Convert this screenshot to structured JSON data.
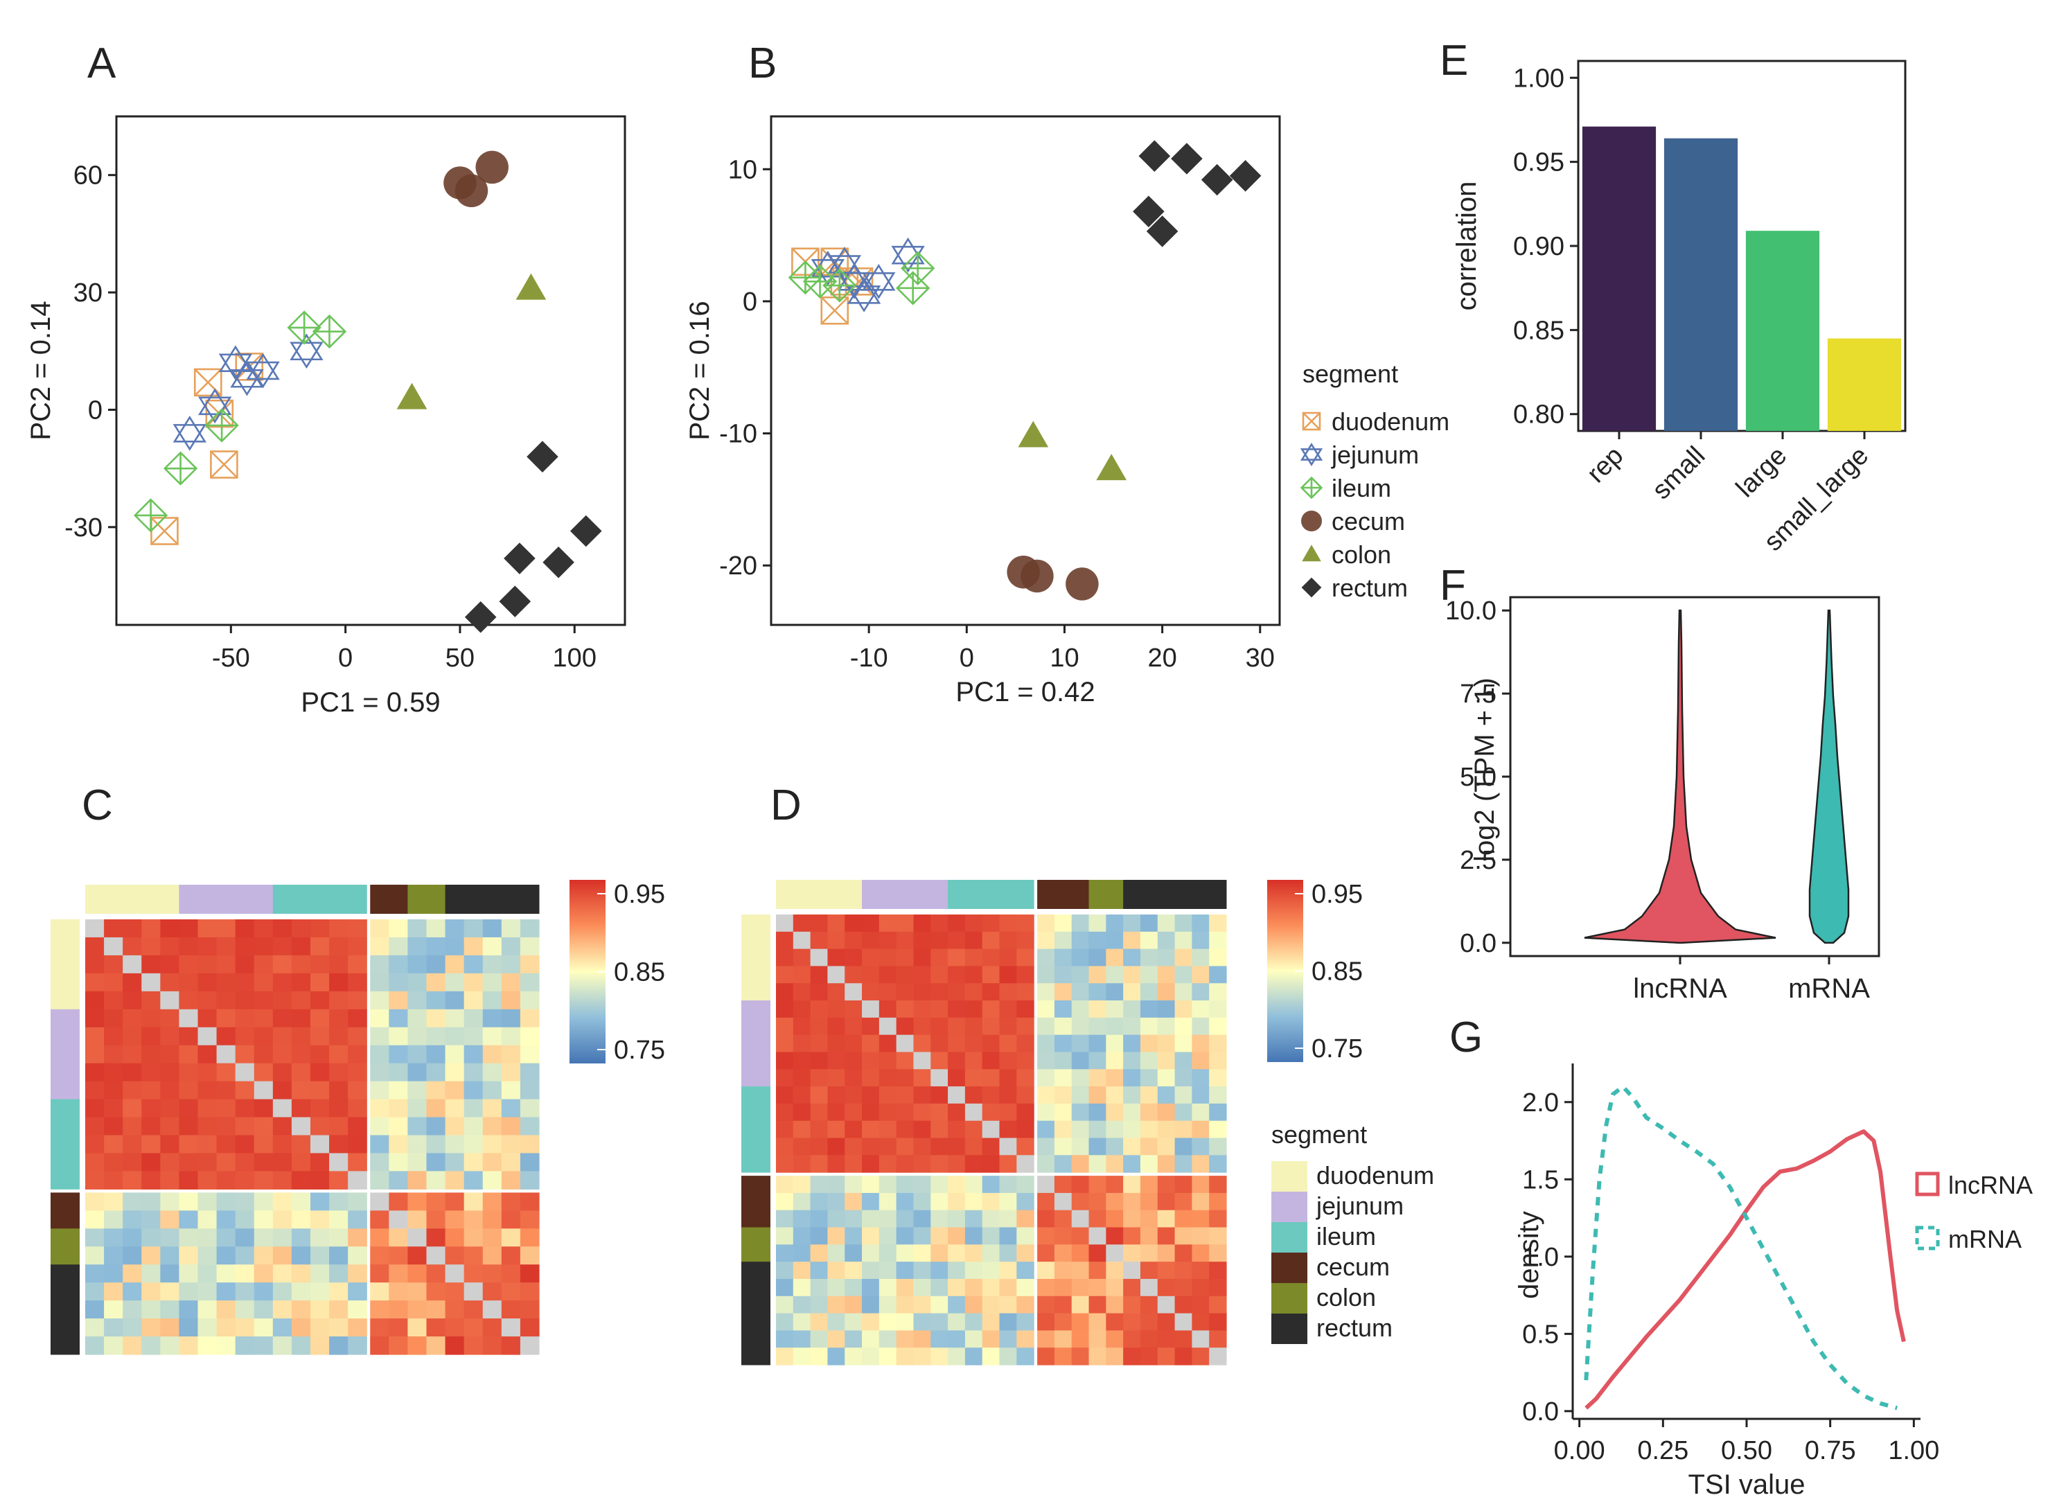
{
  "colors": {
    "duodenum_marker": "#e6a15a",
    "jejunum_marker": "#5a78b5",
    "ileum_marker": "#6cc35a",
    "cecum_marker": "#6b3e2c",
    "colon_marker": "#8a9a3a",
    "rectum_marker": "#333333",
    "duodenum_bar": "#f5f3b8",
    "jejunum_bar": "#c4b5e0",
    "ileum_bar": "#6cc9bf",
    "cecum_bar": "#5a2c1c",
    "colon_bar": "#7d8a2a",
    "rectum_bar": "#2c2c2c",
    "lncRNA": "#e05561",
    "mRNA": "#3dbab2",
    "rep": "#3d2450",
    "small": "#3d6391",
    "large": "#42bf70",
    "small_large": "#e8dc2d"
  },
  "panels": {
    "A": "A",
    "B": "B",
    "C": "C",
    "D": "D",
    "E": "E",
    "F": "F",
    "G": "G"
  },
  "chart_data": [
    {
      "id": "A",
      "type": "scatter",
      "xlabel": "PC1 = 0.59",
      "ylabel": "PC2 = 0.14",
      "xlim": [
        -100,
        122
      ],
      "ylim": [
        -55,
        75
      ],
      "xticks": [
        -50,
        0,
        50,
        100
      ],
      "yticks": [
        60,
        30,
        0,
        -30
      ],
      "series": [
        {
          "name": "duodenum",
          "points": [
            [
              -60,
              7
            ],
            [
              -55,
              -1
            ],
            [
              -53,
              -14
            ],
            [
              -42,
              11
            ],
            [
              -79,
              -31
            ]
          ]
        },
        {
          "name": "jejunum",
          "points": [
            [
              -48,
              12
            ],
            [
              -57,
              1
            ],
            [
              -68,
              -6
            ],
            [
              -36,
              10
            ],
            [
              -17,
              15
            ],
            [
              -43,
              8
            ]
          ]
        },
        {
          "name": "ileum",
          "points": [
            [
              -18,
              21
            ],
            [
              -7,
              20
            ],
            [
              -54,
              -4
            ],
            [
              -72,
              -15
            ],
            [
              -85,
              -27
            ]
          ]
        },
        {
          "name": "cecum",
          "points": [
            [
              50,
              58
            ],
            [
              55,
              56
            ],
            [
              64,
              62
            ]
          ]
        },
        {
          "name": "colon",
          "points": [
            [
              81,
              31
            ],
            [
              29,
              3
            ]
          ]
        },
        {
          "name": "rectum",
          "points": [
            [
              86,
              -12
            ],
            [
              76,
              -38
            ],
            [
              93,
              -39
            ],
            [
              105,
              -31
            ],
            [
              74,
              -49
            ],
            [
              59,
              -53
            ]
          ]
        }
      ]
    },
    {
      "id": "B",
      "type": "scatter",
      "xlabel": "PC1 = 0.42",
      "ylabel": "PC2 = 0.16",
      "xlim": [
        -20,
        32
      ],
      "ylim": [
        -24.5,
        14
      ],
      "xticks": [
        -10,
        0,
        10,
        20,
        30
      ],
      "yticks": [
        10,
        0,
        -10,
        -20
      ],
      "series": [
        {
          "name": "duodenum",
          "points": [
            [
              -16.5,
              3
            ],
            [
              -13.5,
              3
            ],
            [
              -12.5,
              1.5
            ],
            [
              -11,
              1.5
            ],
            [
              -13.5,
              -0.7
            ]
          ]
        },
        {
          "name": "jejunum",
          "points": [
            [
              -6,
              3.5
            ],
            [
              -9,
              1.5
            ],
            [
              -11.5,
              1.5
            ],
            [
              -14.2,
              2.5
            ],
            [
              -10.5,
              0.5
            ],
            [
              -12.5,
              2.8
            ]
          ]
        },
        {
          "name": "ileum",
          "points": [
            [
              -5,
              2.5
            ],
            [
              -5.5,
              1
            ],
            [
              -15,
              1.5
            ],
            [
              -16.5,
              1.8
            ],
            [
              -13,
              1.2
            ]
          ]
        },
        {
          "name": "cecum",
          "points": [
            [
              5.8,
              -20.5
            ],
            [
              7.2,
              -20.8
            ],
            [
              11.8,
              -21.4
            ]
          ]
        },
        {
          "name": "colon",
          "points": [
            [
              6.8,
              -10.2
            ],
            [
              14.8,
              -12.7
            ]
          ]
        },
        {
          "name": "rectum",
          "points": [
            [
              19.2,
              11
            ],
            [
              22.5,
              10.8
            ],
            [
              25.6,
              9.2
            ],
            [
              28.5,
              9.5
            ],
            [
              18.6,
              6.8
            ],
            [
              20,
              5.3
            ]
          ]
        }
      ]
    },
    {
      "id": "E",
      "type": "bar",
      "ylabel": "correlation",
      "categories": [
        "rep",
        "small",
        "large",
        "small_large"
      ],
      "values": [
        0.971,
        0.964,
        0.909,
        0.845
      ],
      "ylim": [
        0.79,
        1.01
      ],
      "yticks": [
        "1.00",
        "0.95",
        "0.90",
        "0.85",
        "0.80"
      ]
    },
    {
      "id": "F",
      "type": "violin",
      "ylabel": "log2 (TPM + 1)",
      "categories": [
        "lncRNA",
        "mRNA"
      ],
      "ylim": [
        -0.4,
        10.4
      ],
      "yticks": [
        "10.0",
        "7.5",
        "5.0",
        "2.5",
        "0.0"
      ]
    },
    {
      "id": "G",
      "type": "line",
      "xlabel": "TSI value",
      "ylabel": "density",
      "xlim": [
        -0.02,
        1.02
      ],
      "ylim": [
        -0.05,
        2.25
      ],
      "xticks": [
        "0.00",
        "0.25",
        "0.50",
        "0.75",
        "1.00"
      ],
      "yticks": [
        "2.0",
        "1.5",
        "1.0",
        "0.5",
        "0.0"
      ],
      "series": [
        {
          "name": "lncRNA",
          "x": [
            0.02,
            0.05,
            0.1,
            0.15,
            0.2,
            0.25,
            0.3,
            0.35,
            0.4,
            0.45,
            0.5,
            0.55,
            0.6,
            0.65,
            0.7,
            0.75,
            0.8,
            0.85,
            0.88,
            0.9,
            0.93,
            0.95,
            0.97
          ],
          "y": [
            0.02,
            0.08,
            0.22,
            0.35,
            0.48,
            0.6,
            0.72,
            0.86,
            1.0,
            1.14,
            1.3,
            1.45,
            1.55,
            1.57,
            1.62,
            1.68,
            1.76,
            1.81,
            1.75,
            1.55,
            1.0,
            0.65,
            0.45
          ]
        },
        {
          "name": "mRNA",
          "x": [
            0.02,
            0.04,
            0.06,
            0.08,
            0.1,
            0.13,
            0.16,
            0.2,
            0.25,
            0.3,
            0.35,
            0.4,
            0.45,
            0.5,
            0.55,
            0.6,
            0.65,
            0.7,
            0.75,
            0.8,
            0.85,
            0.9,
            0.95
          ],
          "y": [
            0.2,
            0.9,
            1.5,
            1.85,
            2.05,
            2.1,
            2.03,
            1.9,
            1.83,
            1.75,
            1.68,
            1.6,
            1.45,
            1.25,
            1.05,
            0.85,
            0.65,
            0.45,
            0.3,
            0.18,
            0.1,
            0.05,
            0.02
          ]
        }
      ]
    },
    {
      "id": "C",
      "type": "heatmap",
      "colorbar_ticks": [
        "0.95",
        "0.85",
        "0.75"
      ]
    },
    {
      "id": "D",
      "type": "heatmap",
      "colorbar_ticks": [
        "0.95",
        "0.85",
        "0.75"
      ]
    }
  ],
  "legend_pca": {
    "title": "segment",
    "items": [
      {
        "key": "duodenum",
        "label": "duodenum"
      },
      {
        "key": "jejunum",
        "label": "jejunum"
      },
      {
        "key": "ileum",
        "label": "ileum"
      },
      {
        "key": "cecum",
        "label": "cecum"
      },
      {
        "key": "colon",
        "label": "colon"
      },
      {
        "key": "rectum",
        "label": "rectum"
      }
    ]
  },
  "legend_heat": {
    "title": "segment",
    "items": [
      {
        "key": "duodenum",
        "label": "duodenum"
      },
      {
        "key": "jejunum",
        "label": "jejunum"
      },
      {
        "key": "ileum",
        "label": "ileum"
      },
      {
        "key": "cecum",
        "label": "cecum"
      },
      {
        "key": "colon",
        "label": "colon"
      },
      {
        "key": "rectum",
        "label": "rectum"
      }
    ]
  },
  "legend_tsi": {
    "items": [
      {
        "key": "lncRNA",
        "label": "lncRNA"
      },
      {
        "key": "mRNA",
        "label": "mRNA"
      }
    ]
  }
}
